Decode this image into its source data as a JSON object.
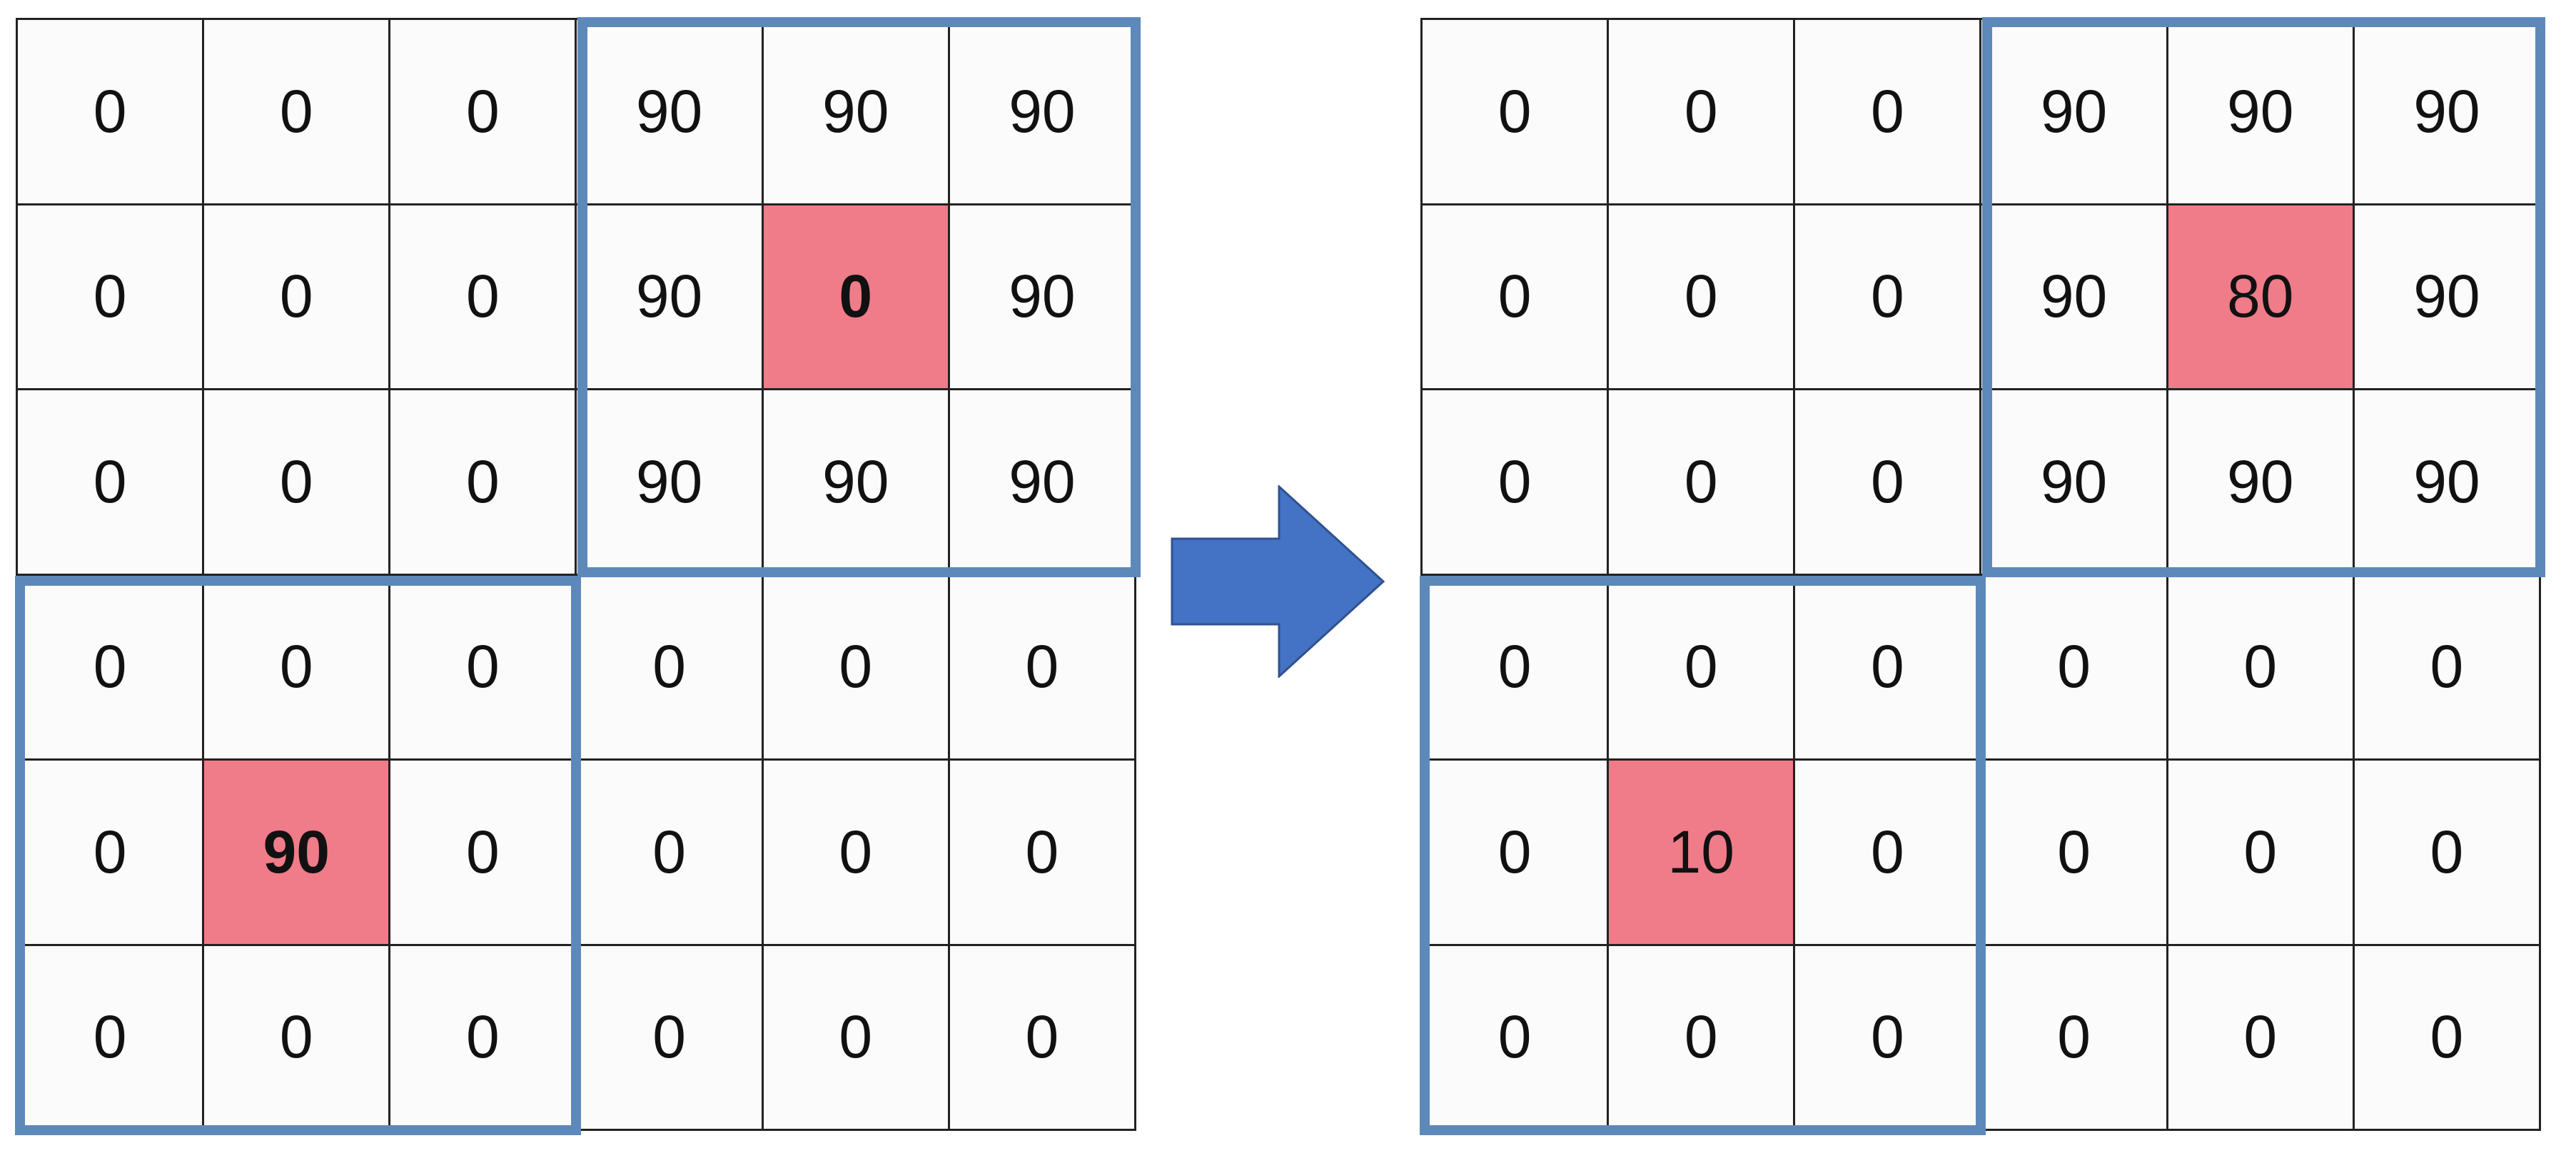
{
  "colors": {
    "highlight": "#f07b89",
    "window_border": "#5d89ba",
    "arrow": "#4472c4",
    "arrow_outline": "#2f528f"
  },
  "grids": {
    "before": {
      "rows": [
        [
          "0",
          "0",
          "0",
          "90",
          "90",
          "90"
        ],
        [
          "0",
          "0",
          "0",
          "90",
          "0",
          "90"
        ],
        [
          "0",
          "0",
          "0",
          "90",
          "90",
          "90"
        ],
        [
          "0",
          "0",
          "0",
          "0",
          "0",
          "0"
        ],
        [
          "0",
          "90",
          "0",
          "0",
          "0",
          "0"
        ],
        [
          "0",
          "0",
          "0",
          "0",
          "0",
          "0"
        ]
      ]
    },
    "after": {
      "rows": [
        [
          "0",
          "0",
          "0",
          "90",
          "90",
          "90"
        ],
        [
          "0",
          "0",
          "0",
          "90",
          "80",
          "90"
        ],
        [
          "0",
          "0",
          "0",
          "90",
          "90",
          "90"
        ],
        [
          "0",
          "0",
          "0",
          "0",
          "0",
          "0"
        ],
        [
          "0",
          "10",
          "0",
          "0",
          "0",
          "0"
        ],
        [
          "0",
          "0",
          "0",
          "0",
          "0",
          "0"
        ]
      ]
    }
  }
}
